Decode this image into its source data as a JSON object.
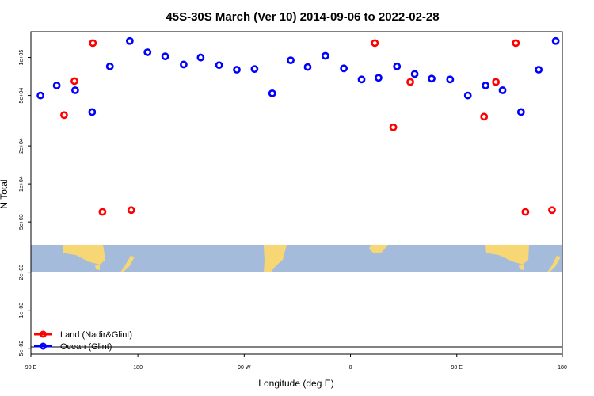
{
  "chart_data": {
    "type": "scatter",
    "title": "45S-30S March (Ver 10)   2014-09-06 to 2022-02-28",
    "xlabel": "Longitude (deg E)",
    "ylabel": "N Total",
    "y_scale": "log",
    "xlim": [
      90,
      450
    ],
    "ylim": [
      450,
      160000
    ],
    "x_ticks": [
      {
        "value": 90,
        "label": "90 E"
      },
      {
        "value": 162.5,
        "label": "180"
      },
      {
        "value": 234.5,
        "label": "90 W"
      },
      {
        "value": 306.5,
        "label": "0"
      },
      {
        "value": 378.5,
        "label": "90 E"
      },
      {
        "value": 450,
        "label": "180"
      }
    ],
    "y_ticks": [
      {
        "value": 500,
        "label": "5e+02"
      },
      {
        "value": 1000,
        "label": "1e+03"
      },
      {
        "value": 2000,
        "label": "2e+03"
      },
      {
        "value": 5000,
        "label": "5e+03"
      },
      {
        "value": 10000,
        "label": "1e+04"
      },
      {
        "value": 20000,
        "label": "2e+04"
      },
      {
        "value": 50000,
        "label": "5e+04"
      },
      {
        "value": 100000,
        "label": "1e+05"
      }
    ],
    "background_map": {
      "y_top": 3300,
      "y_bottom": 2000,
      "ocean_color": "#a5bbdb",
      "land_color": "#f7d774"
    },
    "grid": false,
    "legend_position": "bottom-left",
    "series": [
      {
        "name": "Land (Nadir&Glint)",
        "color": "#ff0000",
        "x": [
          112.5,
          119.5,
          132,
          138.5,
          158,
          323,
          335.5,
          347,
          397,
          405,
          418.5,
          425,
          443
        ],
        "y": [
          35000,
          65000,
          130000,
          6000,
          6200,
          130000,
          28000,
          64000,
          34000,
          64000,
          130000,
          6000,
          6200
        ]
      },
      {
        "name": "Ocean (Glint)",
        "color": "#0000ff",
        "x": [
          96.5,
          107.5,
          120,
          131.5,
          143.5,
          157,
          169,
          181,
          193.5,
          205,
          217.5,
          229.5,
          241.5,
          253.5,
          266,
          277.5,
          289.5,
          302,
          314,
          325.5,
          338,
          350,
          361.5,
          374,
          386,
          398,
          409.5,
          422,
          434,
          445.5
        ],
        "y": [
          50000,
          60000,
          55000,
          37000,
          85000,
          135000,
          110000,
          102000,
          88000,
          100000,
          87000,
          80000,
          81000,
          52000,
          95000,
          84000,
          103000,
          82000,
          67000,
          69000,
          85000,
          74000,
          68000,
          67000,
          50000,
          60000,
          55000,
          37000,
          80000,
          135000
        ]
      }
    ]
  }
}
